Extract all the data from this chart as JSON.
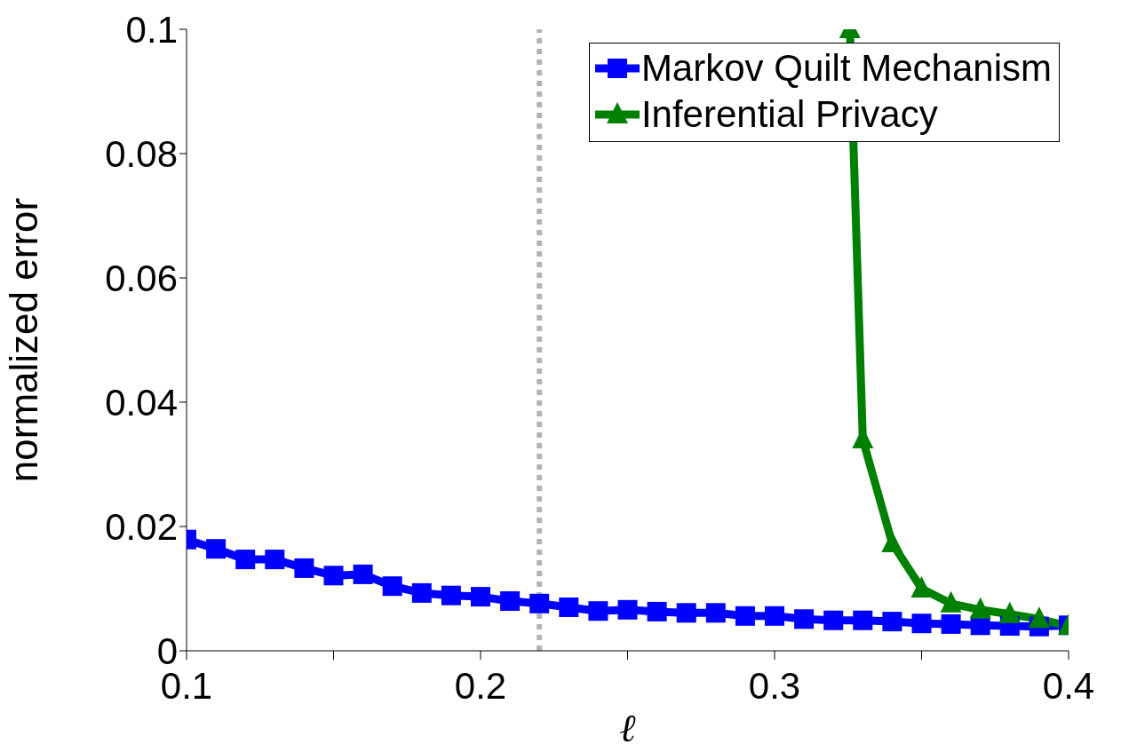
{
  "chart_data": {
    "type": "line",
    "xlabel": "ℓ",
    "ylabel": "normalized error",
    "xlim": [
      0.1,
      0.4
    ],
    "ylim": [
      0,
      0.1
    ],
    "xticks": [
      0.1,
      {
        "value": 0.15,
        "label": null
      },
      0.2,
      {
        "value": 0.25,
        "label": null
      },
      0.3,
      {
        "value": 0.35,
        "label": null
      },
      0.4
    ],
    "yticks": [
      0,
      0.02,
      0.04,
      0.06,
      0.08,
      0.1
    ],
    "grid": false,
    "legend": "top right",
    "line_style": "solid",
    "ref_lines": [
      {
        "axis": "x",
        "value": 0.22,
        "color": "#b3b3b3",
        "line_style": "dotted"
      }
    ],
    "series": [
      {
        "name": "Markov Quilt Mechanism",
        "color": "#0000ff",
        "marker": "square",
        "x": [
          0.1,
          0.11,
          0.12,
          0.13,
          0.14,
          0.15,
          0.16,
          0.17,
          0.18,
          0.19,
          0.2,
          0.21,
          0.22,
          0.23,
          0.24,
          0.25,
          0.26,
          0.27,
          0.28,
          0.29,
          0.3,
          0.31,
          0.32,
          0.33,
          0.34,
          0.35,
          0.36,
          0.37,
          0.38,
          0.39,
          0.4
        ],
        "values": [
          0.0179,
          0.0164,
          0.0147,
          0.0147,
          0.0133,
          0.0121,
          0.0123,
          0.0104,
          0.0093,
          0.0089,
          0.0087,
          0.008,
          0.0076,
          0.007,
          0.0064,
          0.0066,
          0.0063,
          0.0061,
          0.0061,
          0.0056,
          0.0056,
          0.0051,
          0.0049,
          0.0049,
          0.0047,
          0.0044,
          0.0043,
          0.0041,
          0.004,
          0.0039,
          0.0041
        ]
      },
      {
        "name": "Inferential Privacy",
        "color": "#008000",
        "marker": "triangle",
        "x": [
          0.3256,
          0.33,
          0.34,
          0.35,
          0.36,
          0.37,
          0.38,
          0.39,
          0.4
        ],
        "values": [
          0.1,
          0.034,
          0.0173,
          0.01,
          0.0076,
          0.0066,
          0.0059,
          0.0051,
          0.004
        ]
      }
    ]
  }
}
